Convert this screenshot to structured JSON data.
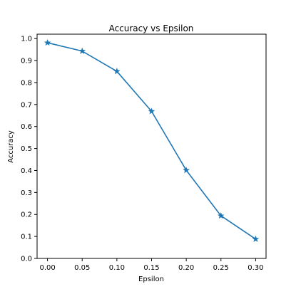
{
  "chart_data": {
    "type": "line",
    "title": "Accuracy vs Epsilon",
    "xlabel": "Epsilon",
    "ylabel": "Accuracy",
    "x": [
      0.0,
      0.05,
      0.1,
      0.15,
      0.2,
      0.25,
      0.3
    ],
    "series": [
      {
        "values": [
          0.981,
          0.943,
          0.851,
          0.669,
          0.401,
          0.194,
          0.088
        ],
        "color": "#1f77b4",
        "marker": "star"
      }
    ],
    "xlim": [
      -0.015,
      0.315
    ],
    "ylim": [
      0.0,
      1.02
    ],
    "xticks": [
      "0.00",
      "0.05",
      "0.10",
      "0.15",
      "0.20",
      "0.25",
      "0.30"
    ],
    "yticks": [
      "0.0",
      "0.1",
      "0.2",
      "0.3",
      "0.4",
      "0.5",
      "0.6",
      "0.7",
      "0.8",
      "0.9",
      "1.0"
    ],
    "grid": false,
    "legend": false
  }
}
